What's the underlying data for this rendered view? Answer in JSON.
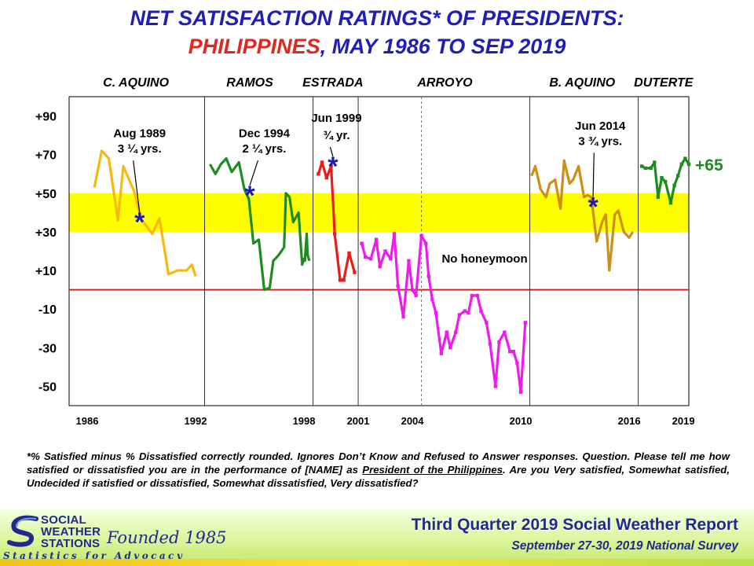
{
  "title": {
    "line1": "NET SATISFACTION  RATINGS* OF PRESIDENTS:",
    "line2_red": "PHILIPPINES",
    "line2_rest": ",  MAY 1986 TO SEP 2019"
  },
  "chart_data": {
    "type": "line",
    "xlim": [
      1985,
      2019.3
    ],
    "ylim": [
      -60,
      100
    ],
    "ytick_values": [
      90,
      70,
      50,
      30,
      10,
      -10,
      -30,
      -50
    ],
    "ytick_labels": [
      "+90",
      "+70",
      "+50",
      "+30",
      "+10",
      "-10",
      "-30",
      "-50"
    ],
    "xtick_values": [
      1986,
      1992,
      1998,
      2001,
      2004,
      2010,
      2016,
      2019
    ],
    "xtick_labels": [
      "1986",
      "1992",
      "1998",
      "2001",
      "2004",
      "2010",
      "2016",
      "2019"
    ],
    "highlight_band": {
      "from": 30,
      "to": 50,
      "color": "#ffff00"
    },
    "zero_line": {
      "value": 0,
      "color": "#e02020"
    },
    "term_boundaries": [
      1992.5,
      1998.5,
      2001.0,
      2010.5,
      2016.5
    ],
    "dashed_boundaries": [
      2004.5
    ],
    "presidents": [
      {
        "name": "C. AQUINO",
        "x": 1988.7
      },
      {
        "name": "RAMOS",
        "x": 1995.0
      },
      {
        "name": "ESTRADA",
        "x": 1999.6
      },
      {
        "name": "ARROYO",
        "x": 2005.8
      },
      {
        "name": "B. AQUINO",
        "x": 2013.4
      },
      {
        "name": "DUTERTE",
        "x": 2017.9
      }
    ],
    "series": [
      {
        "name": "C. AQUINO",
        "color": "#f5b90f",
        "marker": "none",
        "x": [
          1986.4,
          1986.8,
          1987.2,
          1987.7,
          1988.0,
          1988.6,
          1989.0,
          1989.2,
          1989.6,
          1990.0,
          1990.5,
          1991.0,
          1991.5,
          1991.8,
          1992.0
        ],
        "y": [
          53,
          72,
          68,
          36,
          64,
          51,
          36,
          34,
          29,
          37,
          8,
          10,
          10,
          13,
          7
        ]
      },
      {
        "name": "RAMOS",
        "color": "#1e8c1e",
        "marker": "none",
        "x": [
          1992.8,
          1993.1,
          1993.4,
          1993.7,
          1994.0,
          1994.4,
          1994.7,
          1994.95,
          1995.2,
          1995.5,
          1995.8,
          1996.1,
          1996.3,
          1996.6,
          1996.9,
          1997.0,
          1997.2,
          1997.4,
          1997.7,
          1997.9,
          1998.0,
          1998.05,
          1998.15,
          1998.2,
          1998.3
        ],
        "y": [
          65,
          60,
          65,
          68,
          61,
          66,
          52,
          47,
          24,
          26,
          0,
          1,
          15,
          18,
          22,
          50,
          48,
          35,
          40,
          13,
          16,
          15,
          29,
          18,
          15
        ]
      },
      {
        "name": "ESTRADA",
        "color": "#ee1a1a",
        "marker": "square",
        "x": [
          1998.8,
          1999.0,
          1999.25,
          1999.5,
          1999.7,
          2000.0,
          2000.2,
          2000.5,
          2000.8
        ],
        "y": [
          60,
          66,
          58,
          64,
          29,
          5,
          5,
          19,
          9
        ]
      },
      {
        "name": "ARROYO",
        "color": "#ee1aee",
        "marker": "square",
        "x": [
          2001.2,
          2001.4,
          2001.7,
          2002.0,
          2002.2,
          2002.5,
          2002.8,
          2003.0,
          2003.2,
          2003.5,
          2003.8,
          2004.0,
          2004.2,
          2004.5,
          2004.75,
          2004.9,
          2005.1,
          2005.3,
          2005.6,
          2005.9,
          2006.1,
          2006.4,
          2006.6,
          2006.9,
          2007.1,
          2007.3,
          2007.6,
          2007.8,
          2008.1,
          2008.3,
          2008.6,
          2008.8,
          2009.1,
          2009.4,
          2009.6,
          2009.8,
          2010.0,
          2010.25
        ],
        "y": [
          24,
          17,
          16,
          26,
          12,
          20,
          16,
          29,
          2,
          -14,
          15,
          0,
          -3,
          28,
          24,
          7,
          -5,
          -12,
          -33,
          -22,
          -30,
          -22,
          -13,
          -11,
          -12,
          -3,
          -3,
          -11,
          -17,
          -28,
          -50,
          -27,
          -22,
          -32,
          -32,
          -38,
          -53,
          -17
        ]
      },
      {
        "name": "B. AQUINO",
        "color": "#cc8f1a",
        "marker": "none",
        "x": [
          2010.6,
          2010.8,
          2011.1,
          2011.4,
          2011.6,
          2011.9,
          2012.2,
          2012.4,
          2012.7,
          2012.9,
          2013.2,
          2013.5,
          2013.7,
          2013.9,
          2014.2,
          2014.5,
          2014.7,
          2014.9,
          2015.2,
          2015.4,
          2015.7,
          2016.0,
          2016.2
        ],
        "y": [
          59,
          64,
          52,
          48,
          55,
          57,
          42,
          67,
          55,
          57,
          64,
          48,
          49,
          48,
          25,
          35,
          39,
          10,
          39,
          41,
          30,
          27,
          30
        ]
      },
      {
        "name": "DUTERTE",
        "color": "#1e8c1e",
        "marker": "square",
        "x": [
          2016.7,
          2016.9,
          2017.2,
          2017.4,
          2017.6,
          2017.8,
          2018.0,
          2018.3,
          2018.5,
          2018.7,
          2018.9,
          2019.1,
          2019.3
        ],
        "y": [
          64,
          63,
          63,
          66,
          48,
          58,
          56,
          45,
          54,
          59,
          65,
          68,
          65
        ]
      }
    ],
    "key_points": [
      {
        "x": 1988.9,
        "y": 36
      },
      {
        "x": 1995.0,
        "y": 50
      },
      {
        "x": 1999.6,
        "y": 65
      },
      {
        "x": 2014.0,
        "y": 44
      }
    ],
    "annotations": [
      {
        "x": 1988.9,
        "y": 79,
        "text": "Aug 1989"
      },
      {
        "x": 1988.9,
        "y": 71,
        "text": "3 ¼ yrs."
      },
      {
        "x": 1995.8,
        "y": 79,
        "text": "Dec 1994"
      },
      {
        "x": 1995.8,
        "y": 71,
        "text": "2 ¼ yrs."
      },
      {
        "x": 1999.8,
        "y": 87,
        "text": "Jun 1999"
      },
      {
        "x": 1999.8,
        "y": 78,
        "text": "¾ yr."
      },
      {
        "x": 2014.4,
        "y": 83,
        "text": "Jun 2014"
      },
      {
        "x": 2014.4,
        "y": 75,
        "text": "3 ¾ yrs."
      },
      {
        "x": 2008.0,
        "y": 14,
        "text": "No honeymoon"
      }
    ],
    "latest_value_label": "+65"
  },
  "footnote": {
    "part1": "*% Satisfied  minus  % Dissatisfied  correctly  rounded.  Ignores Don’t Know and Refused to Answer responses. Question.  Please  tell  me  how satisfied  or  dissatisfied  you  are  in  the  performance  of  [NAME]  as ",
    "underlined": "President  of the Philippines",
    "part2": ".   Are you Very satisfied,  Somewhat  satisfied,  Undecided  if  satisfied  or  dissatisfied, Somewhat  dissatisfied,  Very dissatisfied?"
  },
  "footer": {
    "logo_line1": "SOCIAL",
    "logo_line2": "WEATHER",
    "logo_line3": "STATIONS",
    "founded": "Founded 1985",
    "tagline": "Statistics for Advocacy",
    "report_title": "Third Quarter 2019 Social Weather Report",
    "survey_dates": "September 27-30, 2019 National Survey",
    "brand_color": "#1f2a8c"
  }
}
